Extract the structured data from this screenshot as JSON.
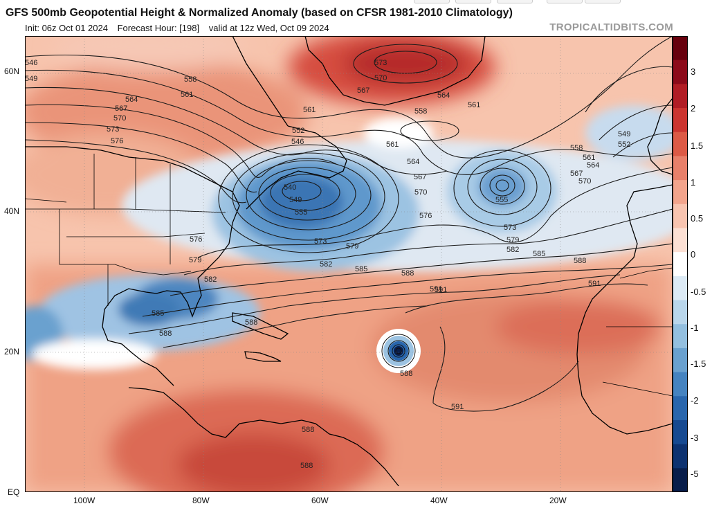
{
  "header": {
    "title": "GFS 500mb Geopotential Height & Normalized Anomaly (based on CFSR 1981-2010 Climatology)",
    "init": "Init: 06z Oct 01 2024",
    "forecast_hour": "Forecast Hour: [198]",
    "valid": "valid at 12z Wed, Oct 09 2024",
    "credit": "TROPICALTIDBITS.COM"
  },
  "axes": {
    "lat_labels": [
      "60N",
      "40N",
      "20N",
      "EQ"
    ],
    "lon_labels": [
      "100W",
      "80W",
      "60W",
      "40W",
      "20W"
    ]
  },
  "colorbar": {
    "labels": [
      "3",
      "2",
      "1.5",
      "1",
      "0.5",
      "0",
      "-0.5",
      "-1",
      "-1.5",
      "-2",
      "-3",
      "-5"
    ],
    "colors": [
      "#67000d",
      "#8c0a1a",
      "#b11d25",
      "#cc3530",
      "#dc5a46",
      "#e8806a",
      "#f2a48c",
      "#f8c4b0",
      "#fce0d4",
      "#ffffff",
      "#dceaf5",
      "#b9d6eb",
      "#93bfdf",
      "#6aa1cf",
      "#4583c0",
      "#2966ad",
      "#174a91",
      "#0d3270",
      "#081d4a"
    ]
  },
  "contours": {
    "labels": [
      "546",
      "549",
      "558",
      "561",
      "564",
      "567",
      "570",
      "573",
      "576",
      "573",
      "570",
      "567",
      "564",
      "561",
      "558",
      "561",
      "552",
      "546",
      "540",
      "549",
      "555",
      "573",
      "579",
      "582",
      "585",
      "588",
      "591",
      "561",
      "564",
      "567",
      "570",
      "576",
      "573",
      "579",
      "582",
      "585",
      "588",
      "591",
      "558",
      "561",
      "564",
      "567",
      "570",
      "555",
      "549",
      "552",
      "579",
      "576",
      "582",
      "585",
      "588",
      "588",
      "588",
      "591",
      "591",
      "588",
      "588"
    ]
  }
}
